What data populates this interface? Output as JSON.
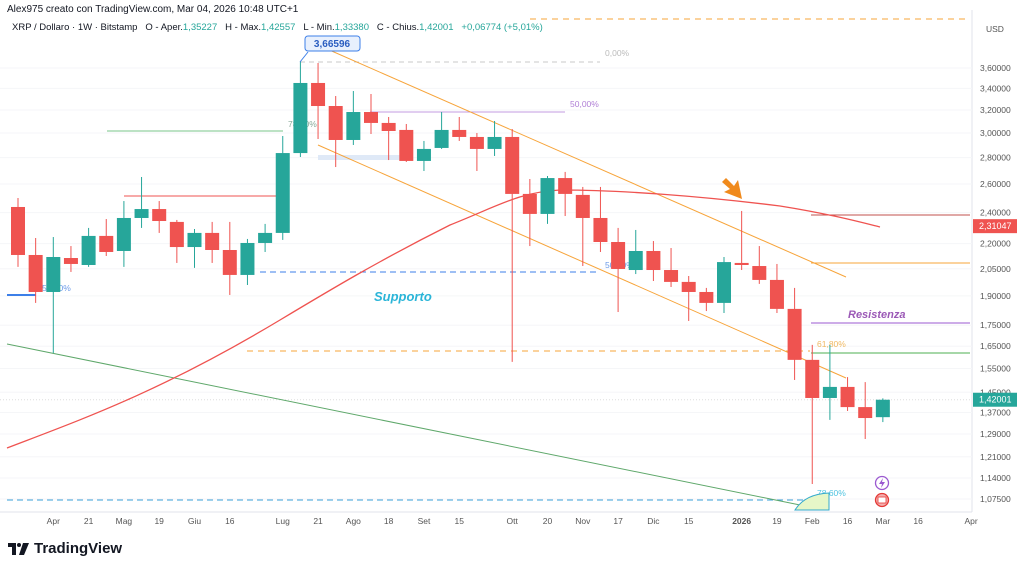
{
  "header": {
    "credit": "Alex975 creato con TradingView.com, Mar 04, 2026 10:48 UTC+1",
    "symbol": "XRP / Dollaro · 1W · Bitstamp",
    "open_label": "O - Aper.",
    "open": "1,35227",
    "high_label": "H - Max.",
    "high": "1,42557",
    "low_label": "L - Min.",
    "low": "1,33380",
    "close_label": "C - Chius.",
    "close": "1,42001",
    "change": "+0,06774 (+5,01%)"
  },
  "logo": "TradingView",
  "colors": {
    "up": "#26a69a",
    "down": "#ef5350",
    "ma": "#ef5350",
    "channel": "#f7a43a",
    "support": "#3d7fe8",
    "resistance": "#9b59d0"
  },
  "annotations": {
    "high_callout": "3,66596",
    "fib_0": "0,00%",
    "fib_50_top": "50,00%",
    "fib_786_left": "78,60%",
    "fib_50_mid": "50,00%",
    "fib_50_left": "50,00%",
    "fib_618": "61,80%",
    "fib_786_bottom": "78,60%",
    "support": "Supporto",
    "resistance": "Resistenza",
    "ma_price": "2,31047",
    "last_price": "1,42001"
  },
  "icons": [
    "arrow-down-icon",
    "lightning-event-icon",
    "us-flag-event-icon",
    "tradingview-logo-icon"
  ],
  "chart_data": {
    "type": "candlestick",
    "interval": "1W",
    "currency": "USD",
    "y_scale": "log",
    "ylim": [
      1.04,
      3.85
    ],
    "y_ticks": [
      3.6,
      3.4,
      3.2,
      3.0,
      2.8,
      2.6,
      2.4,
      2.2,
      2.05,
      1.9,
      1.75,
      1.65,
      1.55,
      1.45,
      1.37,
      1.29,
      1.21,
      1.14,
      1.075
    ],
    "y_tick_labels": [
      "3,60000",
      "3,40000",
      "3,20000",
      "3,00000",
      "2,80000",
      "2,60000",
      "2,40000",
      "2,20000",
      "2,05000",
      "1,90000",
      "1,75000",
      "1,65000",
      "1,55000",
      "1,45000",
      "1,37000",
      "1,29000",
      "1,21000",
      "1,14000",
      "1,07500"
    ],
    "x_tick_labels": [
      "Apr",
      "21",
      "Mag",
      "19",
      "Giu",
      "16",
      "Lug",
      "21",
      "Ago",
      "18",
      "Set",
      "15",
      "Ott",
      "20",
      "Nov",
      "17",
      "Dic",
      "15",
      "2026",
      "19",
      "Feb",
      "16",
      "Mar",
      "16",
      "Apr"
    ],
    "candles": [
      [
        2.438,
        2.5,
        2.061,
        2.131
      ],
      [
        2.131,
        2.235,
        1.863,
        1.921
      ],
      [
        1.921,
        2.241,
        1.619,
        2.119
      ],
      [
        2.113,
        2.185,
        2.032,
        2.078
      ],
      [
        2.072,
        2.299,
        2.061,
        2.248
      ],
      [
        2.248,
        2.357,
        2.125,
        2.149
      ],
      [
        2.155,
        2.479,
        2.061,
        2.364
      ],
      [
        2.364,
        2.652,
        2.299,
        2.424
      ],
      [
        2.424,
        2.479,
        2.267,
        2.344
      ],
      [
        2.338,
        2.351,
        2.084,
        2.179
      ],
      [
        2.179,
        2.292,
        2.055,
        2.267
      ],
      [
        2.267,
        2.338,
        2.084,
        2.161
      ],
      [
        2.161,
        2.338,
        1.905,
        2.015
      ],
      [
        2.015,
        2.229,
        1.959,
        2.204
      ],
      [
        2.204,
        2.325,
        2.149,
        2.267
      ],
      [
        2.267,
        2.975,
        2.223,
        2.836
      ],
      [
        2.836,
        3.666,
        2.805,
        3.452
      ],
      [
        3.452,
        3.651,
        2.95,
        3.236
      ],
      [
        3.236,
        3.328,
        2.727,
        2.942
      ],
      [
        2.942,
        3.375,
        2.901,
        3.182
      ],
      [
        3.182,
        3.347,
        2.992,
        3.086
      ],
      [
        3.086,
        3.138,
        2.781,
        3.017
      ],
      [
        3.026,
        3.077,
        2.766,
        2.774
      ],
      [
        2.774,
        2.934,
        2.697,
        2.869
      ],
      [
        2.877,
        3.182,
        2.869,
        3.026
      ],
      [
        3.026,
        3.138,
        2.934,
        2.967
      ],
      [
        2.967,
        3.0,
        2.697,
        2.869
      ],
      [
        2.869,
        3.103,
        2.813,
        2.967
      ],
      [
        2.967,
        3.034,
        1.579,
        2.529
      ],
      [
        2.529,
        2.637,
        2.185,
        2.391
      ],
      [
        2.391,
        2.659,
        2.325,
        2.644
      ],
      [
        2.644,
        2.69,
        2.377,
        2.529
      ],
      [
        2.522,
        2.579,
        2.066,
        2.364
      ],
      [
        2.364,
        2.579,
        2.149,
        2.21
      ],
      [
        2.21,
        2.299,
        1.816,
        2.049
      ],
      [
        2.043,
        2.286,
        2.02,
        2.155
      ],
      [
        2.155,
        2.216,
        1.981,
        2.043
      ],
      [
        2.043,
        2.173,
        1.948,
        1.976
      ],
      [
        1.976,
        2.009,
        1.771,
        1.921
      ],
      [
        1.921,
        1.943,
        1.821,
        1.863
      ],
      [
        1.863,
        2.119,
        1.811,
        2.089
      ],
      [
        2.084,
        2.411,
        2.043,
        2.072
      ],
      [
        2.066,
        2.185,
        1.965,
        1.987
      ],
      [
        1.987,
        2.078,
        1.811,
        1.832
      ],
      [
        1.832,
        1.943,
        1.501,
        1.588
      ],
      [
        1.588,
        1.656,
        1.121,
        1.427
      ],
      [
        1.427,
        1.656,
        1.342,
        1.472
      ],
      [
        1.472,
        1.513,
        1.376,
        1.391
      ],
      [
        1.391,
        1.492,
        1.272,
        1.349
      ],
      [
        1.35227,
        1.42557,
        1.3338,
        1.42001
      ]
    ],
    "levels": {
      "ma_last": 2.31047,
      "resistance": 1.75,
      "last": 1.42001
    }
  }
}
